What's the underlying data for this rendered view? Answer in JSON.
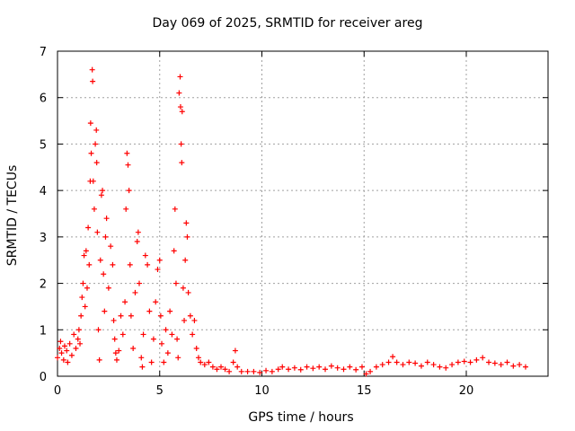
{
  "chart_data": {
    "type": "scatter",
    "title": "Day 069 of 2025, SRMTID for receiver areg",
    "xlabel": "GPS time / hours",
    "ylabel": "SRMTID / TECUs",
    "xlim": [
      0,
      24
    ],
    "ylim": [
      0,
      7
    ],
    "xticks": [
      0,
      5,
      10,
      15,
      20
    ],
    "yticks": [
      0,
      1,
      2,
      3,
      4,
      5,
      6,
      7
    ],
    "xtick_labels": [
      "0",
      "5",
      "10",
      "15",
      "20"
    ],
    "ytick_labels": [
      "0",
      "1",
      "2",
      "3",
      "4",
      "5",
      "6",
      "7"
    ],
    "grid": true,
    "marker": "+",
    "color": "#ff0000",
    "series": [
      {
        "name": "SRMTID",
        "points": [
          [
            0.0,
            0.4
          ],
          [
            0.1,
            0.6
          ],
          [
            0.15,
            0.75
          ],
          [
            0.2,
            0.5
          ],
          [
            0.3,
            0.35
          ],
          [
            0.35,
            0.65
          ],
          [
            0.45,
            0.55
          ],
          [
            0.5,
            0.3
          ],
          [
            0.6,
            0.7
          ],
          [
            0.7,
            0.45
          ],
          [
            0.8,
            0.9
          ],
          [
            0.9,
            0.6
          ],
          [
            1.0,
            0.8
          ],
          [
            1.05,
            1.0
          ],
          [
            1.1,
            0.7
          ],
          [
            1.15,
            1.3
          ],
          [
            1.2,
            1.7
          ],
          [
            1.25,
            2.0
          ],
          [
            1.3,
            2.6
          ],
          [
            1.35,
            1.5
          ],
          [
            1.4,
            2.7
          ],
          [
            1.45,
            1.9
          ],
          [
            1.5,
            3.2
          ],
          [
            1.55,
            2.4
          ],
          [
            1.6,
            4.2
          ],
          [
            1.62,
            5.45
          ],
          [
            1.65,
            4.8
          ],
          [
            1.7,
            6.6
          ],
          [
            1.72,
            6.35
          ],
          [
            1.75,
            4.2
          ],
          [
            1.8,
            3.6
          ],
          [
            1.85,
            5.0
          ],
          [
            1.9,
            5.3
          ],
          [
            1.92,
            4.6
          ],
          [
            1.95,
            3.1
          ],
          [
            2.0,
            1.0
          ],
          [
            2.05,
            0.35
          ],
          [
            2.1,
            2.5
          ],
          [
            2.15,
            3.9
          ],
          [
            2.2,
            4.0
          ],
          [
            2.25,
            2.2
          ],
          [
            2.3,
            1.4
          ],
          [
            2.35,
            3.0
          ],
          [
            2.4,
            3.4
          ],
          [
            2.5,
            1.9
          ],
          [
            2.6,
            2.8
          ],
          [
            2.7,
            2.4
          ],
          [
            2.75,
            1.2
          ],
          [
            2.8,
            0.8
          ],
          [
            2.85,
            0.5
          ],
          [
            2.9,
            0.35
          ],
          [
            3.0,
            0.55
          ],
          [
            3.1,
            1.3
          ],
          [
            3.2,
            0.9
          ],
          [
            3.3,
            1.6
          ],
          [
            3.35,
            3.6
          ],
          [
            3.4,
            4.8
          ],
          [
            3.45,
            4.55
          ],
          [
            3.5,
            4.0
          ],
          [
            3.55,
            2.4
          ],
          [
            3.6,
            1.3
          ],
          [
            3.7,
            0.6
          ],
          [
            3.8,
            1.8
          ],
          [
            3.9,
            2.9
          ],
          [
            3.95,
            3.1
          ],
          [
            4.0,
            2.0
          ],
          [
            4.1,
            0.4
          ],
          [
            4.15,
            0.2
          ],
          [
            4.2,
            0.9
          ],
          [
            4.3,
            2.6
          ],
          [
            4.4,
            2.4
          ],
          [
            4.5,
            1.4
          ],
          [
            4.6,
            0.3
          ],
          [
            4.7,
            0.8
          ],
          [
            4.8,
            1.6
          ],
          [
            4.9,
            2.3
          ],
          [
            5.0,
            2.5
          ],
          [
            5.05,
            1.3
          ],
          [
            5.1,
            0.7
          ],
          [
            5.2,
            0.3
          ],
          [
            5.3,
            1.0
          ],
          [
            5.4,
            0.5
          ],
          [
            5.5,
            1.4
          ],
          [
            5.6,
            0.9
          ],
          [
            5.7,
            2.7
          ],
          [
            5.75,
            3.6
          ],
          [
            5.8,
            2.0
          ],
          [
            5.85,
            0.8
          ],
          [
            5.9,
            0.4
          ],
          [
            5.95,
            6.1
          ],
          [
            6.0,
            6.45
          ],
          [
            6.02,
            5.8
          ],
          [
            6.05,
            5.0
          ],
          [
            6.08,
            4.6
          ],
          [
            6.1,
            5.7
          ],
          [
            6.15,
            1.9
          ],
          [
            6.2,
            1.2
          ],
          [
            6.25,
            2.5
          ],
          [
            6.3,
            3.3
          ],
          [
            6.35,
            3.0
          ],
          [
            6.4,
            1.8
          ],
          [
            6.5,
            1.3
          ],
          [
            6.6,
            0.9
          ],
          [
            6.7,
            1.2
          ],
          [
            6.8,
            0.6
          ],
          [
            6.9,
            0.4
          ],
          [
            7.0,
            0.3
          ],
          [
            7.2,
            0.25
          ],
          [
            7.4,
            0.3
          ],
          [
            7.6,
            0.2
          ],
          [
            7.8,
            0.15
          ],
          [
            8.0,
            0.2
          ],
          [
            8.2,
            0.15
          ],
          [
            8.4,
            0.1
          ],
          [
            8.6,
            0.3
          ],
          [
            8.7,
            0.55
          ],
          [
            8.8,
            0.2
          ],
          [
            9.0,
            0.1
          ],
          [
            9.3,
            0.1
          ],
          [
            9.6,
            0.1
          ],
          [
            9.9,
            0.08
          ],
          [
            10.2,
            0.12
          ],
          [
            10.5,
            0.1
          ],
          [
            10.8,
            0.15
          ],
          [
            11.0,
            0.2
          ],
          [
            11.3,
            0.15
          ],
          [
            11.6,
            0.18
          ],
          [
            11.9,
            0.14
          ],
          [
            12.2,
            0.2
          ],
          [
            12.5,
            0.17
          ],
          [
            12.8,
            0.2
          ],
          [
            13.1,
            0.15
          ],
          [
            13.4,
            0.22
          ],
          [
            13.7,
            0.18
          ],
          [
            14.0,
            0.15
          ],
          [
            14.3,
            0.2
          ],
          [
            14.6,
            0.14
          ],
          [
            14.9,
            0.2
          ],
          [
            15.1,
            0.05
          ],
          [
            15.3,
            0.1
          ],
          [
            15.6,
            0.2
          ],
          [
            15.9,
            0.25
          ],
          [
            16.2,
            0.3
          ],
          [
            16.4,
            0.42
          ],
          [
            16.6,
            0.3
          ],
          [
            16.9,
            0.25
          ],
          [
            17.2,
            0.3
          ],
          [
            17.5,
            0.28
          ],
          [
            17.8,
            0.22
          ],
          [
            18.1,
            0.3
          ],
          [
            18.4,
            0.25
          ],
          [
            18.7,
            0.2
          ],
          [
            19.0,
            0.18
          ],
          [
            19.3,
            0.25
          ],
          [
            19.6,
            0.3
          ],
          [
            19.9,
            0.32
          ],
          [
            20.2,
            0.3
          ],
          [
            20.5,
            0.35
          ],
          [
            20.8,
            0.4
          ],
          [
            21.1,
            0.3
          ],
          [
            21.4,
            0.28
          ],
          [
            21.7,
            0.25
          ],
          [
            22.0,
            0.3
          ],
          [
            22.3,
            0.22
          ],
          [
            22.6,
            0.25
          ],
          [
            22.9,
            0.2
          ]
        ]
      }
    ]
  }
}
